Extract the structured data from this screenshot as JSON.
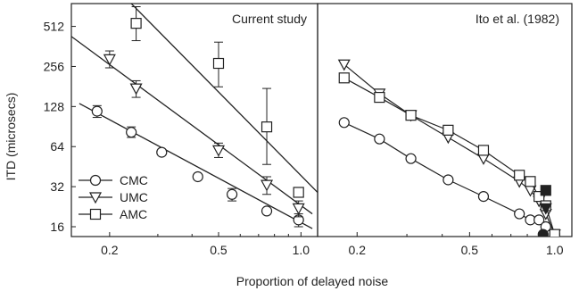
{
  "figure": {
    "ylabel": "ITD (microsecs)",
    "xlabel": "Proportion of delayed noise",
    "colors": {
      "ink": "#222222",
      "frame": "#222222"
    }
  },
  "chart_data": [
    {
      "type": "line",
      "title": "Current study",
      "xscale": "log",
      "yscale": "log",
      "xlim": [
        0.145,
        1.15
      ],
      "ylim": [
        13.5,
        760
      ],
      "x_ticks": [
        0.2,
        0.5,
        1.0
      ],
      "x_tick_labels": [
        "0.2",
        "0.5",
        "1.0"
      ],
      "y_ticks": [
        16,
        32,
        64,
        128,
        256,
        512
      ],
      "y_tick_labels": [
        "16",
        "32",
        "64",
        "128",
        "256",
        "512"
      ],
      "legend": {
        "position": "bottom-left",
        "entries": [
          "CMC",
          "UMC",
          "AMC"
        ]
      },
      "series": [
        {
          "name": "CMC",
          "marker": "circle",
          "x": [
            0.18,
            0.24,
            0.31,
            0.42,
            0.56,
            0.75,
            0.98
          ],
          "y": [
            118,
            82,
            58,
            38,
            28,
            21,
            18
          ],
          "yerr_low": [
            106,
            75,
            null,
            null,
            25,
            null,
            16
          ],
          "yerr_high": [
            130,
            90,
            null,
            null,
            31,
            null,
            20
          ]
        },
        {
          "name": "UMC",
          "marker": "triangle-down",
          "x": [
            0.2,
            0.25,
            0.5,
            0.75,
            0.98
          ],
          "y": [
            290,
            175,
            60,
            33,
            22
          ],
          "yerr_low": [
            250,
            150,
            53,
            28,
            19
          ],
          "yerr_high": [
            335,
            200,
            68,
            38,
            25
          ]
        },
        {
          "name": "AMC",
          "marker": "square",
          "x": [
            0.25,
            0.5,
            0.75,
            0.98
          ],
          "y": [
            540,
            270,
            90,
            29
          ],
          "yerr_low": [
            400,
            180,
            47,
            null
          ],
          "yerr_high": [
            720,
            390,
            175,
            null
          ]
        }
      ],
      "fit_lines": [
        {
          "series": "CMC",
          "x": [
            0.155,
            1.1
          ],
          "y": [
            135,
            15.5
          ]
        },
        {
          "series": "UMC",
          "x": [
            0.145,
            1.1
          ],
          "y": [
            430,
            20
          ]
        },
        {
          "series": "AMC",
          "x": [
            0.24,
            1.15
          ],
          "y": [
            760,
            29
          ]
        }
      ]
    },
    {
      "type": "line",
      "title": "Ito et al. (1982)",
      "xscale": "log",
      "yscale": "log",
      "xlim": [
        0.145,
        1.15
      ],
      "ylim": [
        13.5,
        760
      ],
      "x_ticks": [
        0.2,
        0.5,
        1.0
      ],
      "x_tick_labels": [
        "0.2",
        "0.5",
        "1.0"
      ],
      "series": [
        {
          "name": "CMC",
          "marker": "circle",
          "x": [
            0.18,
            0.24,
            0.31,
            0.42,
            0.56,
            0.75,
            0.82,
            0.88,
            0.93,
            1.0
          ],
          "y": [
            97,
            73,
            52,
            36,
            27,
            20,
            18,
            18,
            16,
            14
          ]
        },
        {
          "name": "UMC",
          "marker": "triangle-down",
          "x": [
            0.18,
            0.24,
            0.31,
            0.42,
            0.56,
            0.75,
            0.82,
            0.88,
            0.93,
            1.0
          ],
          "y": [
            265,
            160,
            110,
            75,
            52,
            35,
            30,
            25,
            20,
            14
          ]
        },
        {
          "name": "AMC",
          "marker": "square",
          "x": [
            0.18,
            0.24,
            0.31,
            0.42,
            0.56,
            0.75,
            0.82,
            0.88,
            0.93,
            1.0
          ],
          "y": [
            210,
            150,
            110,
            85,
            60,
            39,
            35,
            27,
            23,
            14
          ]
        },
        {
          "name": "",
          "marker": "circle-filled",
          "x": [
            0.91
          ],
          "y": [
            14
          ]
        },
        {
          "name": "",
          "marker": "triangle-down-filled",
          "x": [
            0.93
          ],
          "y": [
            22
          ]
        },
        {
          "name": "",
          "marker": "square-filled",
          "x": [
            0.93
          ],
          "y": [
            30
          ]
        }
      ]
    }
  ]
}
